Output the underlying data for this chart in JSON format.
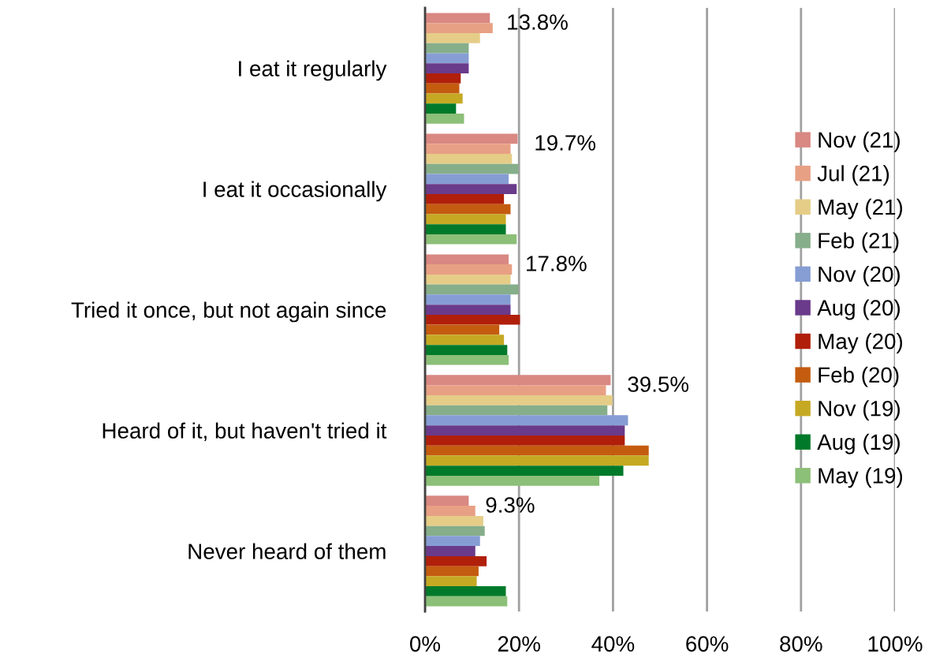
{
  "chart_data": {
    "type": "bar",
    "orientation": "horizontal",
    "categories": [
      "I eat it regularly",
      "I eat it occasionally",
      "Tried it once, but not again since",
      "Heard of it, but haven't tried it",
      "Never heard of them"
    ],
    "series": [
      {
        "name": "Nov (21)",
        "color": "#d98882",
        "values": [
          13.8,
          19.7,
          17.8,
          39.5,
          9.3
        ],
        "value_labels": [
          "13.8%",
          "19.7%",
          "17.8%",
          "39.5%",
          "9.3%"
        ]
      },
      {
        "name": "Jul (21)",
        "color": "#e8a084",
        "values": [
          14.4,
          18.2,
          18.5,
          38.5,
          10.7
        ]
      },
      {
        "name": "May (21)",
        "color": "#e5cd88",
        "values": [
          11.7,
          18.5,
          18.2,
          39.9,
          12.4
        ]
      },
      {
        "name": "Feb (21)",
        "color": "#86ae8a",
        "values": [
          9.3,
          19.9,
          19.9,
          38.8,
          12.7
        ]
      },
      {
        "name": "Nov (20)",
        "color": "#869dd4",
        "values": [
          9.3,
          17.8,
          18.2,
          43.2,
          11.7
        ]
      },
      {
        "name": "Aug (20)",
        "color": "#6a3a8b",
        "values": [
          9.3,
          19.5,
          18.2,
          42.5,
          10.7
        ]
      },
      {
        "name": "May (20)",
        "color": "#b01f09",
        "values": [
          7.6,
          16.8,
          20.2,
          42.5,
          13.1
        ]
      },
      {
        "name": "Feb (20)",
        "color": "#c45c10",
        "values": [
          7.3,
          18.2,
          15.8,
          47.6,
          11.4
        ]
      },
      {
        "name": "Nov (19)",
        "color": "#c5a923",
        "values": [
          8.0,
          17.2,
          16.8,
          47.6,
          11.0
        ]
      },
      {
        "name": "Aug (19)",
        "color": "#007a2a",
        "values": [
          6.6,
          17.2,
          17.5,
          42.2,
          17.2
        ]
      },
      {
        "name": "May (19)",
        "color": "#8cbf78",
        "values": [
          8.3,
          19.5,
          17.8,
          37.1,
          17.5
        ]
      }
    ],
    "xlim": [
      0,
      100
    ],
    "xticks": [
      {
        "value": 0,
        "label": "0%"
      },
      {
        "value": 20,
        "label": "20%"
      },
      {
        "value": 40,
        "label": "40%"
      },
      {
        "value": 60,
        "label": "60%"
      },
      {
        "value": 80,
        "label": "80%"
      },
      {
        "value": 100,
        "label": "100%"
      }
    ],
    "grid": "x",
    "legend": "right"
  }
}
